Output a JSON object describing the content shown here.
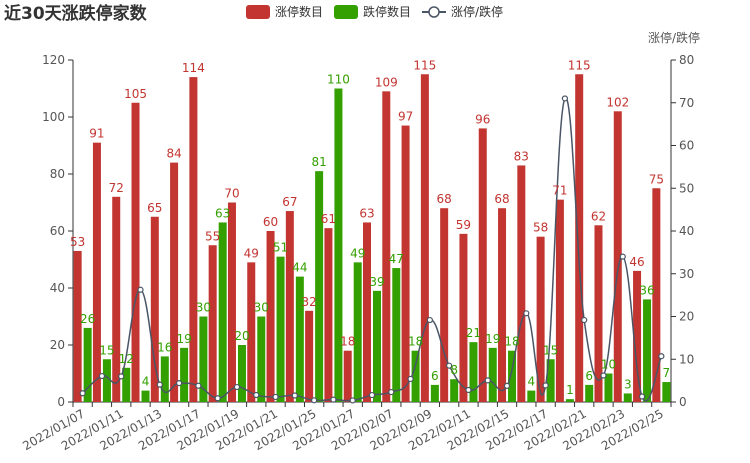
{
  "chart_data": {
    "type": "bar",
    "title": "近30天涨跌停家数",
    "right_axis_name": "涨停/跌停",
    "legend_position": "top-center",
    "colors": {
      "limit_up": "#c23531",
      "limit_down": "#34a000",
      "ratio": "#4a5566"
    },
    "categories": [
      "2022/01/07",
      "2022/01/10",
      "2022/01/11",
      "2022/01/12",
      "2022/01/13",
      "2022/01/14",
      "2022/01/17",
      "2022/01/18",
      "2022/01/19",
      "2022/01/20",
      "2022/01/21",
      "2022/01/24",
      "2022/01/25",
      "2022/01/26",
      "2022/01/27",
      "2022/01/28",
      "2022/02/07",
      "2022/02/08",
      "2022/02/09",
      "2022/02/10",
      "2022/02/11",
      "2022/02/14",
      "2022/02/15",
      "2022/02/16",
      "2022/02/17",
      "2022/02/18",
      "2022/02/21",
      "2022/02/22",
      "2022/02/23",
      "2022/02/24",
      "2022/02/25"
    ],
    "x_tick_labels": [
      "2022/01/07",
      "2022/01/11",
      "2022/01/13",
      "2022/01/17",
      "2022/01/19",
      "2022/01/21",
      "2022/01/25",
      "2022/01/27",
      "2022/02/07",
      "2022/02/09",
      "2022/02/11",
      "2022/02/15",
      "2022/02/17",
      "2022/02/21",
      "2022/02/23",
      "2022/02/25"
    ],
    "series": [
      {
        "name": "涨停数目",
        "type": "bar",
        "axis": "left",
        "values": [
          53,
          91,
          72,
          105,
          65,
          84,
          114,
          55,
          70,
          49,
          60,
          67,
          32,
          61,
          18,
          63,
          109,
          97,
          115,
          68,
          59,
          96,
          68,
          83,
          58,
          71,
          115,
          62,
          102,
          46,
          75
        ]
      },
      {
        "name": "跌停数目",
        "type": "bar",
        "axis": "left",
        "values": [
          26,
          15,
          12,
          4,
          16,
          19,
          30,
          63,
          20,
          30,
          51,
          44,
          81,
          110,
          49,
          39,
          47,
          18,
          6,
          8,
          21,
          19,
          18,
          4,
          15,
          1,
          6,
          10,
          3,
          36,
          7
        ]
      },
      {
        "name": "涨停/跌停",
        "type": "line",
        "axis": "right",
        "values": [
          2.04,
          6.07,
          6.0,
          26.25,
          4.06,
          4.42,
          3.8,
          0.87,
          3.5,
          1.63,
          1.18,
          1.52,
          0.4,
          0.55,
          0.37,
          1.62,
          2.32,
          5.39,
          19.17,
          8.5,
          2.81,
          5.05,
          3.78,
          20.75,
          3.87,
          71,
          19.17,
          6.2,
          34,
          1.28,
          10.71
        ]
      }
    ],
    "ylim_left": [
      0,
      120
    ],
    "yticks_left": [
      0,
      20,
      40,
      60,
      80,
      100,
      120
    ],
    "ylim_right": [
      0,
      80
    ],
    "yticks_right": [
      0,
      10,
      20,
      30,
      40,
      50,
      60,
      70,
      80
    ],
    "grid": false
  }
}
